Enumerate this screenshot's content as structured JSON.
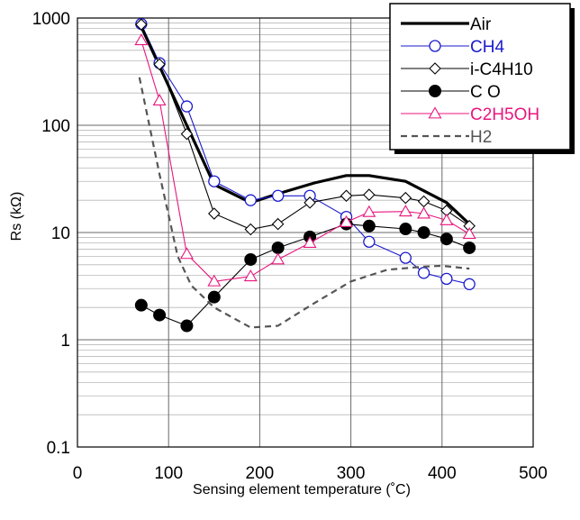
{
  "chart_data": {
    "type": "line",
    "title": "",
    "xlabel": "Sensing element temperature (˚C)",
    "ylabel": "Rs (kΩ)",
    "xlim": [
      0,
      500
    ],
    "ylim": [
      0.1,
      1000
    ],
    "yscale": "log",
    "x_ticks": [
      "0",
      "100",
      "200",
      "300",
      "400",
      "500"
    ],
    "y_ticks": [
      "0.1",
      "1",
      "10",
      "100",
      "1000"
    ],
    "grid": true,
    "legend_position": "top-right",
    "series": [
      {
        "name": "Air",
        "color": "#000000",
        "style": "solid-thick",
        "marker": "none",
        "x": [
          70,
          150,
          190,
          220,
          260,
          295,
          320,
          360,
          405,
          430
        ],
        "y": [
          830,
          28,
          19,
          23,
          29,
          34,
          34,
          30,
          19,
          12
        ]
      },
      {
        "name": "CH4",
        "color": "#1a1acc",
        "style": "solid-thin",
        "marker": "open-circle",
        "x": [
          70,
          90,
          120,
          150,
          190,
          220,
          255,
          295,
          320,
          360,
          380,
          405,
          430
        ],
        "y": [
          880,
          380,
          150,
          30,
          20,
          22,
          22,
          14,
          8.2,
          5.8,
          4.2,
          3.7,
          3.3
        ]
      },
      {
        "name": "i-C4H10",
        "color": "#000000",
        "style": "solid-thin",
        "marker": "open-diamond",
        "x": [
          70,
          90,
          120,
          150,
          190,
          220,
          255,
          295,
          320,
          360,
          380,
          405,
          430
        ],
        "y": [
          870,
          370,
          83,
          15,
          10.7,
          12,
          19,
          22,
          22.5,
          21,
          19.5,
          16,
          11.5
        ]
      },
      {
        "name": "C O",
        "color": "#000000",
        "style": "solid-thin",
        "marker": "filled-circle",
        "x": [
          70,
          90,
          120,
          150,
          190,
          220,
          255,
          295,
          320,
          360,
          380,
          405,
          430
        ],
        "y": [
          2.1,
          1.7,
          1.35,
          2.5,
          5.6,
          7.2,
          9.1,
          12,
          11.5,
          10.8,
          10,
          8.7,
          7.2
        ]
      },
      {
        "name": "C2H5OH",
        "color": "#e8167d",
        "style": "solid-thin",
        "marker": "open-triangle",
        "x": [
          70,
          90,
          120,
          150,
          190,
          220,
          255,
          295,
          320,
          360,
          380,
          405,
          430
        ],
        "y": [
          620,
          170,
          6.3,
          3.5,
          3.9,
          5.6,
          8,
          12.5,
          15.5,
          15.7,
          15,
          13,
          9.7
        ]
      },
      {
        "name": "H2",
        "color": "#555555",
        "style": "dashed",
        "marker": "none",
        "x": [
          68,
          90,
          110,
          125,
          150,
          190,
          220,
          260,
          300,
          340,
          380,
          400,
          430
        ],
        "y": [
          280,
          35,
          6,
          3.2,
          2,
          1.3,
          1.35,
          2.2,
          3.5,
          4.5,
          4.8,
          4.9,
          4.6
        ]
      }
    ]
  }
}
